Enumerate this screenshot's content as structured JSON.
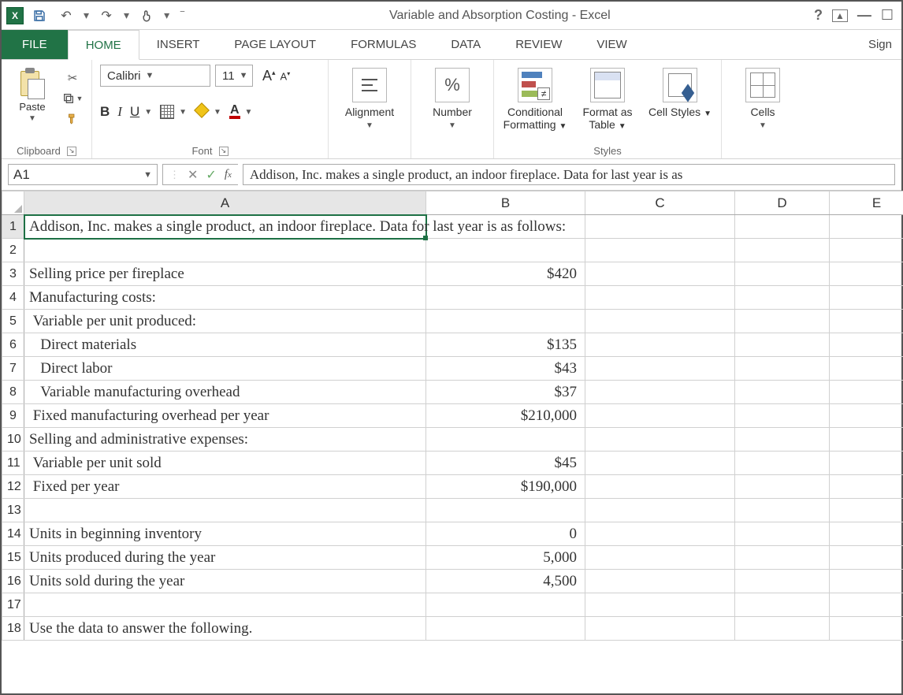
{
  "title": "Variable and Absorption Costing - Excel",
  "qat": {
    "undo_tip": "Undo",
    "redo_tip": "Redo",
    "save_tip": "Save",
    "touch_tip": "Touch/Mouse Mode"
  },
  "tabs": {
    "file": "FILE",
    "home": "HOME",
    "insert": "INSERT",
    "page_layout": "PAGE LAYOUT",
    "formulas": "FORMULAS",
    "data": "DATA",
    "review": "REVIEW",
    "view": "VIEW",
    "signin": "Sign"
  },
  "ribbon": {
    "clipboard": {
      "paste": "Paste",
      "group": "Clipboard"
    },
    "font": {
      "name": "Calibri",
      "size": "11",
      "group": "Font",
      "bold": "B",
      "italic": "I",
      "underline": "U",
      "fontcolor": "A"
    },
    "alignment": {
      "label": "Alignment"
    },
    "number": {
      "label": "Number",
      "icon": "%"
    },
    "styles": {
      "cond": "Conditional Formatting",
      "fat": "Format as Table",
      "cell": "Cell Styles",
      "group": "Styles"
    },
    "cells": {
      "label": "Cells"
    }
  },
  "namebox": "A1",
  "formula": "Addison, Inc. makes a single product, an indoor fireplace. Data for last year is as",
  "columns": [
    "A",
    "B",
    "C",
    "D",
    "E"
  ],
  "rows": [
    {
      "n": 1,
      "a": "Addison, Inc. makes a single product, an indoor fireplace. Data for last year is as follows:",
      "b": ""
    },
    {
      "n": 2,
      "a": "",
      "b": ""
    },
    {
      "n": 3,
      "a": "Selling price per fireplace",
      "b": "$420"
    },
    {
      "n": 4,
      "a": "Manufacturing costs:",
      "b": ""
    },
    {
      "n": 5,
      "a": " Variable per unit produced:",
      "b": ""
    },
    {
      "n": 6,
      "a": "   Direct materials",
      "b": "$135"
    },
    {
      "n": 7,
      "a": "   Direct labor",
      "b": "$43"
    },
    {
      "n": 8,
      "a": "   Variable manufacturing overhead",
      "b": "$37"
    },
    {
      "n": 9,
      "a": " Fixed manufacturing overhead per year",
      "b": "$210,000"
    },
    {
      "n": 10,
      "a": "Selling and administrative expenses:",
      "b": ""
    },
    {
      "n": 11,
      "a": " Variable per unit sold",
      "b": "$45"
    },
    {
      "n": 12,
      "a": " Fixed per year",
      "b": "$190,000"
    },
    {
      "n": 13,
      "a": "",
      "b": ""
    },
    {
      "n": 14,
      "a": "Units in beginning inventory",
      "b": "0"
    },
    {
      "n": 15,
      "a": "Units produced during the year",
      "b": "5,000"
    },
    {
      "n": 16,
      "a": "Units sold during the year",
      "b": "4,500"
    },
    {
      "n": 17,
      "a": "",
      "b": ""
    },
    {
      "n": 18,
      "a": "Use the data to answer the following.",
      "b": ""
    }
  ]
}
